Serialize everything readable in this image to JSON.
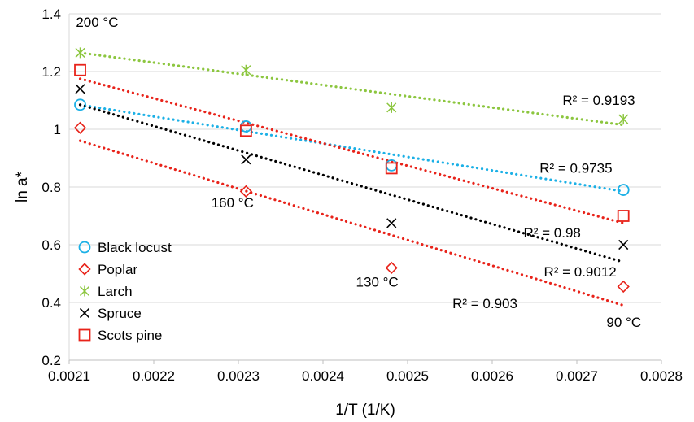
{
  "chart_data": {
    "type": "scatter",
    "xlabel": "1/T (1/K)",
    "ylabel": "ln a*",
    "xlim": [
      0.0021,
      0.0028
    ],
    "ylim": [
      0.2,
      1.4
    ],
    "x_ticks": [
      "0.0021",
      "0.0022",
      "0.0023",
      "0.0024",
      "0.0025",
      "0.0026",
      "0.0027",
      "0.0028"
    ],
    "y_ticks": [
      "0.2",
      "0.4",
      "0.6",
      "0.8",
      "1",
      "1.2",
      "1.4"
    ],
    "grid": "horizontal",
    "legend_position": "bottom-left",
    "series": [
      {
        "name": "Black locust",
        "marker": "circle",
        "color": "#1BB0E6",
        "x": [
          0.002113,
          0.002309,
          0.002481,
          0.002755
        ],
        "y": [
          1.085,
          1.01,
          0.875,
          0.79
        ],
        "trend": {
          "x": [
            0.002113,
            0.002755
          ],
          "y": [
            1.085,
            0.785
          ]
        }
      },
      {
        "name": "Poplar",
        "marker": "diamond",
        "color": "#E8231A",
        "x": [
          0.002113,
          0.002309,
          0.002481,
          0.002755
        ],
        "y": [
          1.005,
          0.785,
          0.52,
          0.455
        ],
        "trend": {
          "x": [
            0.002113,
            0.002755
          ],
          "y": [
            0.96,
            0.39
          ]
        }
      },
      {
        "name": "Larch",
        "marker": "asterisk",
        "color": "#8CC63F",
        "x": [
          0.002113,
          0.002309,
          0.002481,
          0.002755
        ],
        "y": [
          1.265,
          1.205,
          1.075,
          1.035
        ],
        "trend": {
          "x": [
            0.002113,
            0.002755
          ],
          "y": [
            1.265,
            1.015
          ]
        }
      },
      {
        "name": "Spruce",
        "marker": "x",
        "color": "#000000",
        "x": [
          0.002113,
          0.002309,
          0.002481,
          0.002755
        ],
        "y": [
          1.14,
          0.895,
          0.675,
          0.6
        ],
        "trend": {
          "x": [
            0.002113,
            0.002755
          ],
          "y": [
            1.085,
            0.54
          ]
        }
      },
      {
        "name": "Scots pine",
        "marker": "square",
        "color": "#E8231A",
        "x": [
          0.002113,
          0.002309,
          0.002481,
          0.002755
        ],
        "y": [
          1.205,
          0.995,
          0.865,
          0.7
        ],
        "trend": {
          "x": [
            0.002113,
            0.002755
          ],
          "y": [
            1.175,
            0.675
          ]
        }
      }
    ],
    "annotations": [
      {
        "text": "200 °C",
        "x": 0.002108,
        "y": 1.355
      },
      {
        "text": "160 °C",
        "x": 0.002268,
        "y": 0.73
      },
      {
        "text": "130 °C",
        "x": 0.002439,
        "y": 0.455
      },
      {
        "text": "90 °C",
        "x": 0.002735,
        "y": 0.315
      },
      {
        "text": "R² = 0.9193",
        "x": 0.002683,
        "y": 1.085
      },
      {
        "text": "R² = 0.9735",
        "x": 0.002656,
        "y": 0.85
      },
      {
        "text": "R² = 0.98",
        "x": 0.002637,
        "y": 0.625
      },
      {
        "text": "R² = 0.9012",
        "x": 0.002661,
        "y": 0.49
      },
      {
        "text": "R² = 0.903",
        "x": 0.002553,
        "y": 0.38
      }
    ]
  }
}
